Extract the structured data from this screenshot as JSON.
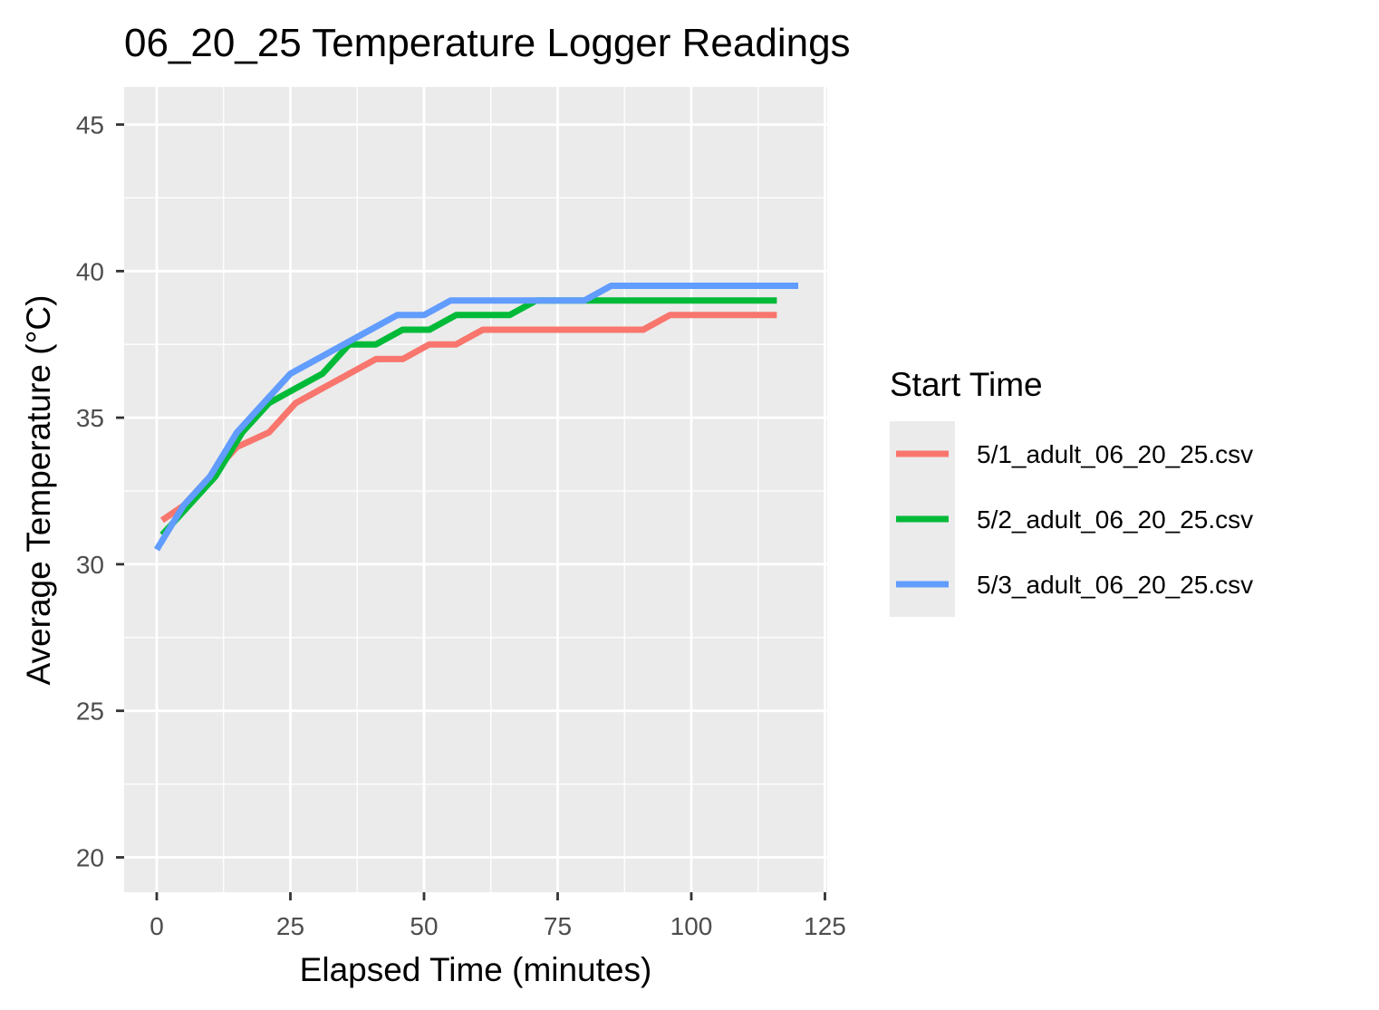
{
  "chart_data": {
    "type": "line",
    "title": "06_20_25 Temperature Logger Readings",
    "xlabel": "Elapsed Time (minutes)",
    "ylabel": "Average Temperature (°C)",
    "xlim": [
      -6,
      126
    ],
    "ylim": [
      18.8,
      46.3
    ],
    "x_ticks": [
      0,
      25,
      50,
      75,
      100,
      125
    ],
    "x_tick_labels": [
      "0",
      "25",
      "50",
      "75",
      "100",
      "125"
    ],
    "y_ticks": [
      20,
      25,
      30,
      35,
      40,
      45
    ],
    "y_tick_labels": [
      "20",
      "25",
      "30",
      "35",
      "40",
      "45"
    ],
    "grid": true,
    "panel_background": "#ebebeb",
    "legend": {
      "title": "Start Time",
      "position": "right"
    },
    "series": [
      {
        "name": "5/1_adult_06_20_25.csv",
        "color": "#f8766d",
        "x": [
          1,
          5,
          10,
          15,
          21,
          26,
          31,
          36,
          41,
          46,
          51,
          56,
          61,
          66,
          71,
          76,
          81,
          86,
          91,
          96,
          101,
          106,
          111,
          116
        ],
        "y": [
          31.5,
          32.0,
          33.0,
          34.0,
          34.5,
          35.5,
          36.0,
          36.5,
          37.0,
          37.0,
          37.5,
          37.5,
          38.0,
          38.0,
          38.0,
          38.0,
          38.0,
          38.0,
          38.0,
          38.5,
          38.5,
          38.5,
          38.5,
          38.5
        ]
      },
      {
        "name": "5/2_adult_06_20_25.csv",
        "color": "#00ba38",
        "x": [
          1,
          6,
          11,
          16,
          21,
          26,
          31,
          36,
          41,
          46,
          51,
          56,
          61,
          66,
          71,
          76,
          81,
          86,
          91,
          96,
          101,
          106,
          111,
          116
        ],
        "y": [
          31.0,
          32.0,
          33.0,
          34.5,
          35.5,
          36.0,
          36.5,
          37.5,
          37.5,
          38.0,
          38.0,
          38.5,
          38.5,
          38.5,
          39.0,
          39.0,
          39.0,
          39.0,
          39.0,
          39.0,
          39.0,
          39.0,
          39.0,
          39.0
        ]
      },
      {
        "name": "5/3_adult_06_20_25.csv",
        "color": "#619cff",
        "x": [
          0,
          5,
          10,
          15,
          20,
          25,
          30,
          35,
          40,
          45,
          50,
          55,
          60,
          65,
          70,
          75,
          80,
          85,
          90,
          95,
          100,
          105,
          110,
          115,
          120
        ],
        "y": [
          30.5,
          32.0,
          33.0,
          34.5,
          35.5,
          36.5,
          37.0,
          37.5,
          38.0,
          38.5,
          38.5,
          39.0,
          39.0,
          39.0,
          39.0,
          39.0,
          39.0,
          39.5,
          39.5,
          39.5,
          39.5,
          39.5,
          39.5,
          39.5,
          39.5
        ]
      }
    ]
  }
}
